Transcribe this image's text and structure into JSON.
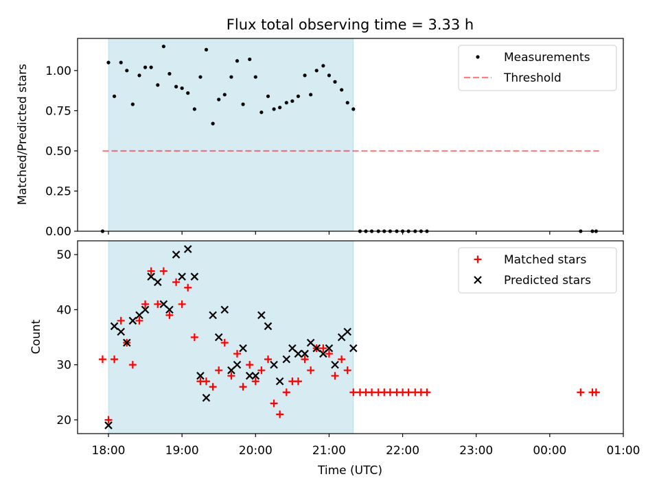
{
  "title": "Flux total observing time = 3.33 h",
  "colors": {
    "span": "#add8e6",
    "threshold": "#ff0000",
    "matched": "#ff0000",
    "predicted": "#000000",
    "measurements": "#000000"
  },
  "x_ticks": [
    "18:00",
    "19:00",
    "20:00",
    "21:00",
    "22:00",
    "23:00",
    "00:00",
    "01:00"
  ],
  "chart_data": [
    {
      "type": "scatter",
      "ylabel": "Matched/Predicted stars",
      "xlim": [
        17.58,
        25.0
      ],
      "ylim": [
        0.0,
        1.2
      ],
      "y_ticks": [
        "0.00",
        "0.25",
        "0.50",
        "0.75",
        "1.00"
      ],
      "shaded_span": [
        18.0,
        21.33
      ],
      "legend": "upper right",
      "legend_entries": [
        {
          "label": "Measurements",
          "marker": "dot"
        },
        {
          "label": "Threshold",
          "marker": "dashed-line"
        }
      ],
      "threshold": {
        "name": "Threshold",
        "x": [
          17.92,
          24.67
        ],
        "y": 0.5
      },
      "series": [
        {
          "name": "Measurements",
          "points": [
            [
              17.92,
              0.0
            ],
            [
              18.0,
              1.05
            ],
            [
              18.08,
              0.84
            ],
            [
              18.17,
              1.05
            ],
            [
              18.25,
              1.0
            ],
            [
              18.33,
              0.79
            ],
            [
              18.42,
              0.97
            ],
            [
              18.5,
              1.02
            ],
            [
              18.58,
              1.02
            ],
            [
              18.67,
              0.91
            ],
            [
              18.75,
              1.15
            ],
            [
              18.83,
              0.98
            ],
            [
              18.92,
              0.9
            ],
            [
              19.0,
              0.89
            ],
            [
              19.08,
              0.86
            ],
            [
              19.17,
              0.76
            ],
            [
              19.25,
              0.96
            ],
            [
              19.33,
              1.13
            ],
            [
              19.42,
              0.67
            ],
            [
              19.5,
              0.82
            ],
            [
              19.58,
              0.85
            ],
            [
              19.67,
              0.96
            ],
            [
              19.75,
              1.06
            ],
            [
              19.83,
              0.79
            ],
            [
              19.92,
              1.07
            ],
            [
              20.0,
              0.96
            ],
            [
              20.08,
              0.74
            ],
            [
              20.17,
              0.84
            ],
            [
              20.25,
              0.76
            ],
            [
              20.33,
              0.77
            ],
            [
              20.42,
              0.8
            ],
            [
              20.5,
              0.81
            ],
            [
              20.58,
              0.84
            ],
            [
              20.67,
              0.97
            ],
            [
              20.75,
              0.85
            ],
            [
              20.83,
              1.0
            ],
            [
              20.92,
              1.03
            ],
            [
              21.0,
              0.97
            ],
            [
              21.08,
              0.93
            ],
            [
              21.17,
              0.88
            ],
            [
              21.25,
              0.8
            ],
            [
              21.33,
              0.76
            ],
            [
              21.42,
              0.0
            ],
            [
              21.5,
              0.0
            ],
            [
              21.58,
              0.0
            ],
            [
              21.67,
              0.0
            ],
            [
              21.75,
              0.0
            ],
            [
              21.83,
              0.0
            ],
            [
              21.92,
              0.0
            ],
            [
              22.0,
              0.0
            ],
            [
              22.08,
              0.0
            ],
            [
              22.17,
              0.0
            ],
            [
              22.25,
              0.0
            ],
            [
              22.33,
              0.0
            ],
            [
              24.42,
              0.0
            ],
            [
              24.58,
              0.0
            ],
            [
              24.63,
              0.0
            ]
          ]
        }
      ]
    },
    {
      "type": "scatter",
      "xlabel": "Time (UTC)",
      "ylabel": "Count",
      "xlim": [
        17.58,
        25.0
      ],
      "ylim": [
        17.5,
        52.5
      ],
      "y_ticks": [
        "20",
        "30",
        "40",
        "50"
      ],
      "shaded_span": [
        18.0,
        21.33
      ],
      "legend": "upper right",
      "legend_entries": [
        {
          "label": "Matched stars",
          "marker": "plus"
        },
        {
          "label": "Predicted stars",
          "marker": "x"
        }
      ],
      "series": [
        {
          "name": "Matched stars",
          "points": [
            [
              17.92,
              31
            ],
            [
              18.0,
              20
            ],
            [
              18.08,
              31
            ],
            [
              18.17,
              38
            ],
            [
              18.25,
              34
            ],
            [
              18.33,
              30
            ],
            [
              18.42,
              38
            ],
            [
              18.5,
              41
            ],
            [
              18.58,
              47
            ],
            [
              18.67,
              41
            ],
            [
              18.75,
              47
            ],
            [
              18.83,
              39
            ],
            [
              18.92,
              45
            ],
            [
              19.0,
              41
            ],
            [
              19.08,
              44
            ],
            [
              19.17,
              35
            ],
            [
              19.25,
              27
            ],
            [
              19.33,
              27
            ],
            [
              19.42,
              26
            ],
            [
              19.5,
              29
            ],
            [
              19.58,
              34
            ],
            [
              19.67,
              28
            ],
            [
              19.75,
              32
            ],
            [
              19.83,
              26
            ],
            [
              19.92,
              30
            ],
            [
              20.0,
              27
            ],
            [
              20.08,
              29
            ],
            [
              20.17,
              31
            ],
            [
              20.25,
              23
            ],
            [
              20.33,
              21
            ],
            [
              20.42,
              25
            ],
            [
              20.5,
              27
            ],
            [
              20.58,
              27
            ],
            [
              20.67,
              31
            ],
            [
              20.75,
              29
            ],
            [
              20.83,
              33
            ],
            [
              20.92,
              33
            ],
            [
              21.0,
              32
            ],
            [
              21.08,
              28
            ],
            [
              21.17,
              31
            ],
            [
              21.25,
              29
            ],
            [
              21.33,
              25
            ],
            [
              21.42,
              25
            ],
            [
              21.5,
              25
            ],
            [
              21.58,
              25
            ],
            [
              21.67,
              25
            ],
            [
              21.75,
              25
            ],
            [
              21.83,
              25
            ],
            [
              21.92,
              25
            ],
            [
              22.0,
              25
            ],
            [
              22.08,
              25
            ],
            [
              22.17,
              25
            ],
            [
              22.25,
              25
            ],
            [
              22.33,
              25
            ],
            [
              24.42,
              25
            ],
            [
              24.58,
              25
            ],
            [
              24.63,
              25
            ]
          ]
        },
        {
          "name": "Predicted stars",
          "points": [
            [
              18.0,
              19
            ],
            [
              18.08,
              37
            ],
            [
              18.17,
              36
            ],
            [
              18.25,
              34
            ],
            [
              18.33,
              38
            ],
            [
              18.42,
              39
            ],
            [
              18.5,
              40
            ],
            [
              18.58,
              46
            ],
            [
              18.67,
              45
            ],
            [
              18.75,
              41
            ],
            [
              18.83,
              40
            ],
            [
              18.92,
              50
            ],
            [
              19.0,
              46
            ],
            [
              19.08,
              51
            ],
            [
              19.17,
              46
            ],
            [
              19.25,
              28
            ],
            [
              19.33,
              24
            ],
            [
              19.42,
              39
            ],
            [
              19.5,
              35
            ],
            [
              19.58,
              40
            ],
            [
              19.67,
              29
            ],
            [
              19.75,
              30
            ],
            [
              19.83,
              33
            ],
            [
              19.92,
              28
            ],
            [
              20.0,
              28
            ],
            [
              20.08,
              39
            ],
            [
              20.17,
              37
            ],
            [
              20.25,
              30
            ],
            [
              20.33,
              27
            ],
            [
              20.42,
              31
            ],
            [
              20.5,
              33
            ],
            [
              20.58,
              32
            ],
            [
              20.67,
              32
            ],
            [
              20.75,
              34
            ],
            [
              20.83,
              33
            ],
            [
              20.92,
              32
            ],
            [
              21.0,
              33
            ],
            [
              21.08,
              30
            ],
            [
              21.17,
              35
            ],
            [
              21.25,
              36
            ],
            [
              21.33,
              33
            ]
          ]
        }
      ]
    }
  ]
}
